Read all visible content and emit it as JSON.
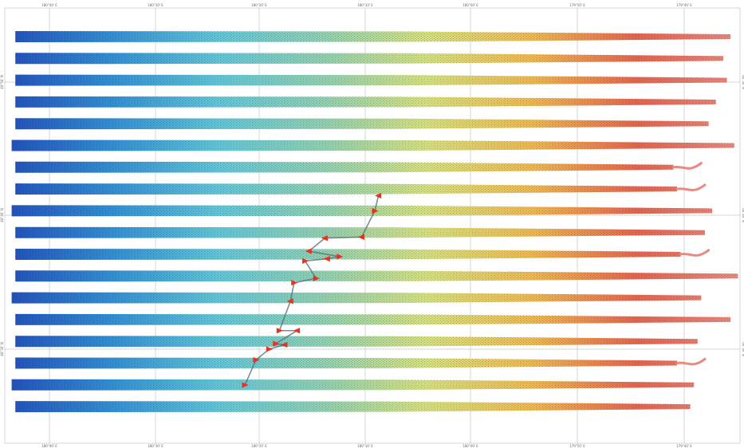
{
  "map": {
    "strip_count": 18,
    "gradient_stops": [
      "#1e4fbf",
      "#2f8fd6",
      "#5ec6d8",
      "#8fd0b0",
      "#d6e07a",
      "#f0b84a",
      "#e8624a",
      "#e88a80"
    ],
    "strip_texture_color": "#1f2a33",
    "grid_line_color": "#9a9a9a",
    "marker_color": "#e8321f",
    "top_longitude_labels": [
      "180°40' E",
      "180°30' E",
      "180°20' E",
      "180°10' E",
      "180°00' E",
      "179°50' E",
      "179°40' E"
    ],
    "bottom_longitude_labels": [
      "180°40' E",
      "180°30' E",
      "180°20' E",
      "180°10' E",
      "180°00' E",
      "179°50' E",
      "179°40' E"
    ],
    "left_latitude_labels": [
      "40°50' N",
      "40°40' N",
      "40°30' N"
    ],
    "right_latitude_labels": [
      "40°50' N",
      "40°40' N",
      "40°30' N"
    ],
    "strips": [
      {
        "start": 0.01,
        "end": 0.985,
        "tail": "straight"
      },
      {
        "start": 0.01,
        "end": 0.975,
        "tail": "straight"
      },
      {
        "start": 0.01,
        "end": 0.98,
        "tail": "straight"
      },
      {
        "start": 0.01,
        "end": 0.965,
        "tail": "straight"
      },
      {
        "start": 0.01,
        "end": 0.955,
        "tail": "straight"
      },
      {
        "start": 0.005,
        "end": 0.99,
        "tail": "straight"
      },
      {
        "start": 0.01,
        "end": 0.945,
        "tail": "wavy"
      },
      {
        "start": 0.01,
        "end": 0.95,
        "tail": "wavy"
      },
      {
        "start": 0.005,
        "end": 0.96,
        "tail": "straight"
      },
      {
        "start": 0.01,
        "end": 0.95,
        "tail": "straight"
      },
      {
        "start": 0.01,
        "end": 0.955,
        "tail": "wavy"
      },
      {
        "start": 0.01,
        "end": 0.995,
        "tail": "straight"
      },
      {
        "start": 0.005,
        "end": 0.945,
        "tail": "straight"
      },
      {
        "start": 0.01,
        "end": 0.985,
        "tail": "straight"
      },
      {
        "start": 0.01,
        "end": 0.94,
        "tail": "straight"
      },
      {
        "start": 0.01,
        "end": 0.95,
        "tail": "wavy"
      },
      {
        "start": 0.005,
        "end": 0.935,
        "tail": "straight"
      },
      {
        "start": 0.01,
        "end": 0.93,
        "tail": "straight"
      }
    ],
    "markers": [
      {
        "lon_frac": 0.505,
        "strip": 7.6,
        "dir": "left"
      },
      {
        "lon_frac": 0.5,
        "strip": 8.3,
        "dir": "right"
      },
      {
        "lon_frac": 0.482,
        "strip": 9.5,
        "dir": "left"
      },
      {
        "lon_frac": 0.432,
        "strip": 9.55,
        "dir": "left"
      },
      {
        "lon_frac": 0.41,
        "strip": 10.15,
        "dir": "left"
      },
      {
        "lon_frac": 0.452,
        "strip": 10.4,
        "dir": "right"
      },
      {
        "lon_frac": 0.435,
        "strip": 10.5,
        "dir": "left"
      },
      {
        "lon_frac": 0.405,
        "strip": 10.6,
        "dir": "right"
      },
      {
        "lon_frac": 0.42,
        "strip": 11.4,
        "dir": "right"
      },
      {
        "lon_frac": 0.39,
        "strip": 11.6,
        "dir": "right"
      },
      {
        "lon_frac": 0.385,
        "strip": 12.45,
        "dir": "left"
      },
      {
        "lon_frac": 0.37,
        "strip": 13.8,
        "dir": "right"
      },
      {
        "lon_frac": 0.394,
        "strip": 13.8,
        "dir": "left"
      },
      {
        "lon_frac": 0.365,
        "strip": 14.4,
        "dir": "right"
      },
      {
        "lon_frac": 0.377,
        "strip": 14.45,
        "dir": "left"
      },
      {
        "lon_frac": 0.356,
        "strip": 14.65,
        "dir": "right"
      },
      {
        "lon_frac": 0.338,
        "strip": 15.15,
        "dir": "right"
      },
      {
        "lon_frac": 0.323,
        "strip": 16.3,
        "dir": "right"
      }
    ]
  }
}
